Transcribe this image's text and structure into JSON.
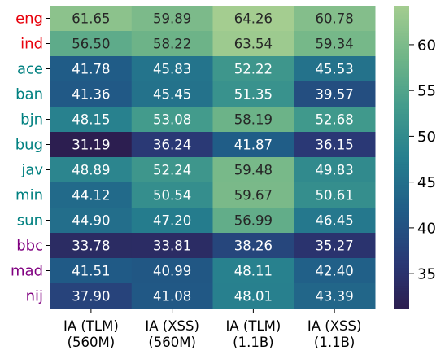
{
  "chart_data": {
    "type": "heatmap",
    "title": "",
    "xlabel": "",
    "ylabel": "",
    "columns": [
      [
        "IA (TLM)",
        "(560M)"
      ],
      [
        "IA (XSS)",
        "(560M)"
      ],
      [
        "IA (TLM)",
        "(1.1B)"
      ],
      [
        "IA (XSS)",
        "(1.1B)"
      ]
    ],
    "rows": [
      {
        "label": "eng",
        "color": "#e8000b",
        "values": [
          "61.65",
          "59.89",
          "64.26",
          "60.78"
        ]
      },
      {
        "label": "ind",
        "color": "#e8000b",
        "values": [
          "56.50",
          "58.22",
          "63.54",
          "59.34"
        ]
      },
      {
        "label": "ace",
        "color": "#008080",
        "values": [
          "41.78",
          "45.83",
          "52.22",
          "45.53"
        ]
      },
      {
        "label": "ban",
        "color": "#008080",
        "values": [
          "41.36",
          "45.45",
          "51.35",
          "39.57"
        ]
      },
      {
        "label": "bjn",
        "color": "#008080",
        "values": [
          "48.15",
          "53.08",
          "58.19",
          "52.68"
        ]
      },
      {
        "label": "bug",
        "color": "#008080",
        "values": [
          "31.19",
          "36.24",
          "41.87",
          "36.15"
        ]
      },
      {
        "label": "jav",
        "color": "#008080",
        "values": [
          "48.89",
          "52.24",
          "59.48",
          "49.83"
        ]
      },
      {
        "label": "min",
        "color": "#008080",
        "values": [
          "44.12",
          "50.54",
          "59.67",
          "50.61"
        ]
      },
      {
        "label": "sun",
        "color": "#008080",
        "values": [
          "44.90",
          "47.20",
          "56.99",
          "46.45"
        ]
      },
      {
        "label": "bbc",
        "color": "#800080",
        "values": [
          "33.78",
          "33.81",
          "38.26",
          "35.27"
        ]
      },
      {
        "label": "mad",
        "color": "#800080",
        "values": [
          "41.51",
          "40.99",
          "48.11",
          "42.40"
        ]
      },
      {
        "label": "nij",
        "color": "#800080",
        "values": [
          "37.90",
          "41.08",
          "48.01",
          "43.39"
        ]
      }
    ],
    "colorbar": {
      "colormap": "crest",
      "vmin": 31.19,
      "vmax": 64.26,
      "ticks": [
        "35",
        "40",
        "45",
        "50",
        "55",
        "60"
      ]
    }
  }
}
